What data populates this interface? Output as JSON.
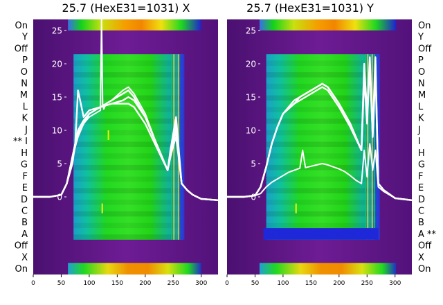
{
  "chart_data": [
    {
      "type": "heatmap",
      "title": "25.7 (HexE31=1031) X",
      "row_labels_left": [
        "On",
        "Y",
        "Off",
        "P",
        "O",
        "N",
        "M",
        "L",
        "K",
        "J",
        "** I",
        "H",
        "G",
        "F",
        "E",
        "D",
        "C",
        "B",
        "A",
        "Off",
        "X",
        "On"
      ],
      "xticks": [
        "0",
        "50",
        "100",
        "150",
        "200",
        "250",
        "300"
      ],
      "xlim": [
        0,
        330
      ],
      "overlay_yticks": [
        "0",
        "5",
        "10",
        "15",
        "20",
        "25"
      ],
      "overlay_ylim": [
        -2,
        27
      ],
      "overlay_series": [
        {
          "x": [
            0,
            30,
            50,
            60,
            70,
            75,
            80,
            90,
            100,
            120,
            140,
            160,
            170,
            180,
            200,
            220,
            240,
            245,
            255,
            265,
            275,
            285,
            300,
            330
          ],
          "y": [
            0,
            0,
            0.3,
            2,
            6,
            8,
            9.5,
            11,
            12.5,
            13.5,
            14.5,
            15.5,
            16,
            15,
            12,
            8,
            4,
            6,
            11,
            2,
            1,
            0.3,
            -0.3,
            -0.5
          ]
        },
        {
          "x": [
            0,
            30,
            50,
            60,
            70,
            75,
            80,
            90,
            100,
            120,
            140,
            160,
            170,
            180,
            200,
            220,
            240,
            245,
            255,
            265,
            275,
            285,
            300,
            330
          ],
          "y": [
            0,
            0,
            0.3,
            2,
            6,
            8,
            10,
            11.5,
            12.5,
            13.5,
            14,
            14.5,
            15,
            14.5,
            12,
            8,
            4,
            7,
            12,
            2,
            1,
            0.3,
            -0.3,
            -0.5
          ]
        },
        {
          "x": [
            0,
            30,
            50,
            60,
            70,
            75,
            80,
            90,
            100,
            120,
            140,
            160,
            170,
            180,
            200,
            220,
            240,
            245,
            255,
            265,
            275,
            285,
            300,
            330
          ],
          "y": [
            0,
            0,
            0.3,
            2,
            5,
            8,
            16,
            12,
            13,
            13.5,
            14,
            14,
            14,
            13.5,
            11,
            7.5,
            4,
            6,
            10,
            2,
            1,
            0.3,
            -0.3,
            -0.5
          ]
        },
        {
          "x": [
            0,
            30,
            50,
            60,
            70,
            75,
            80,
            90,
            100,
            120,
            122,
            124,
            126,
            130,
            140,
            160,
            170,
            180,
            200,
            220,
            240,
            245,
            255,
            265,
            275,
            285,
            300,
            330
          ],
          "y": [
            0,
            0,
            0.3,
            2,
            5.5,
            7.5,
            9,
            11,
            12,
            13,
            27,
            14,
            13.2,
            14,
            14.5,
            16,
            16.5,
            15.5,
            12.5,
            8,
            4,
            6,
            9,
            2,
            1,
            0.3,
            -0.3,
            -0.5
          ]
        }
      ]
    },
    {
      "type": "heatmap",
      "title": "25.7 (HexE31=1031) Y",
      "row_labels_right": [
        "On",
        "Y",
        "Off",
        "P",
        "O",
        "N",
        "M",
        "L",
        "K",
        "J",
        "I",
        "H",
        "G",
        "F",
        "E",
        "D",
        "C",
        "B",
        "A **",
        "Off",
        "X",
        "On"
      ],
      "xticks": [
        "0",
        "50",
        "100",
        "150",
        "200",
        "250",
        "300"
      ],
      "xlim": [
        0,
        330
      ],
      "overlay_yticks": [
        "0",
        "5",
        "10",
        "15",
        "20",
        "25"
      ],
      "overlay_ylim": [
        -2,
        27
      ],
      "overlay_series": [
        {
          "x": [
            0,
            30,
            50,
            60,
            70,
            80,
            90,
            100,
            120,
            140,
            160,
            170,
            180,
            200,
            220,
            240,
            245,
            250,
            255,
            260,
            265,
            270,
            280,
            300,
            330
          ],
          "y": [
            0,
            0,
            0.2,
            1.5,
            4.5,
            8,
            10.5,
            12.5,
            14.5,
            15.5,
            16.5,
            17,
            16.5,
            14,
            11,
            7,
            20,
            12,
            21,
            9,
            20,
            2,
            1,
            -0.2,
            -0.5
          ]
        },
        {
          "x": [
            0,
            30,
            50,
            60,
            70,
            80,
            90,
            100,
            120,
            140,
            160,
            170,
            180,
            200,
            220,
            240,
            245,
            250,
            255,
            260,
            265,
            270,
            280,
            300,
            330
          ],
          "y": [
            0,
            0,
            0.2,
            1.5,
            4.5,
            8,
            10.5,
            12.5,
            14,
            15,
            16,
            16.5,
            16,
            13.5,
            10.5,
            7,
            18,
            11,
            20,
            9,
            19,
            2,
            1,
            -0.2,
            -0.5
          ]
        },
        {
          "x": [
            0,
            30,
            50,
            60,
            70,
            80,
            90,
            100,
            120,
            130,
            140,
            160,
            170,
            180,
            200,
            220,
            240,
            245,
            250,
            255,
            260,
            265,
            270,
            280,
            300,
            330
          ],
          "y": [
            0,
            0,
            0.2,
            1.5,
            4.5,
            8,
            10.5,
            12.5,
            14,
            15,
            15.5,
            16.5,
            17,
            16.5,
            14,
            11,
            7,
            19,
            13,
            20,
            10,
            21,
            2,
            1,
            -0.2,
            -0.5
          ]
        },
        {
          "x": [
            0,
            30,
            50,
            60,
            70,
            80,
            90,
            100,
            110,
            120,
            130,
            135,
            140,
            150,
            160,
            170,
            180,
            190,
            200,
            210,
            220,
            230,
            240,
            245,
            250,
            255,
            260,
            265,
            270,
            280,
            300,
            330
          ],
          "y": [
            0,
            0,
            0.2,
            0.5,
            1.5,
            2.2,
            2.7,
            3.2,
            3.7,
            4,
            4.3,
            7,
            4.4,
            4.6,
            4.8,
            5,
            4.8,
            4.5,
            4.2,
            3.8,
            3.2,
            2.5,
            2,
            7,
            3,
            8,
            4,
            7,
            1.5,
            0.8,
            -0.2,
            -0.5
          ]
        }
      ]
    }
  ],
  "colors": {
    "purple": "#6a1a8a",
    "dark_purple": "#3c0a5a",
    "blue": "#1f1fe0",
    "cyan": "#10b0c0",
    "green": "#20dc10",
    "yellow": "#f0e010",
    "orange": "#f08c00",
    "line": "#ffffff"
  }
}
